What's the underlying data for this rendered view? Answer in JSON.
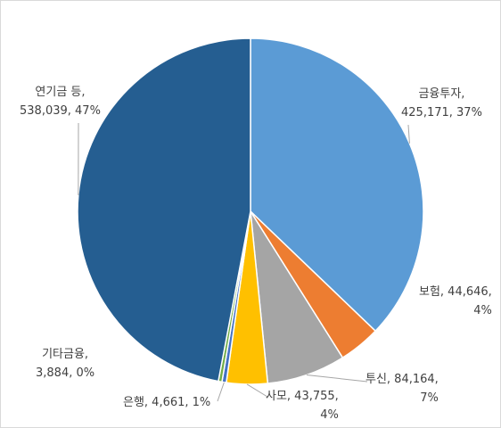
{
  "chart_data": {
    "type": "pie",
    "title": "",
    "categories": [
      "금융투자",
      "보험",
      "투신",
      "사모",
      "은행",
      "기타금융",
      "연기금 등"
    ],
    "values": [
      425171,
      44646,
      84164,
      43755,
      4661,
      3884,
      538039
    ],
    "percent_labels": [
      "37%",
      "4%",
      "7%",
      "4%",
      "1%",
      "0%",
      "47%"
    ],
    "colors": [
      "#5B9BD5",
      "#ED7D31",
      "#A5A5A5",
      "#FFC000",
      "#4472C4",
      "#70AD47",
      "#255E91"
    ],
    "legend": "none",
    "labels": [
      {
        "line1": "금융투자,",
        "line2": "425,171, 37%"
      },
      {
        "line1": "보험, 44,646,",
        "line2": "4%"
      },
      {
        "line1": "투신, 84,164,",
        "line2": "7%"
      },
      {
        "line1": "사모, 43,755,",
        "line2": "4%"
      },
      {
        "line1": "은행, 4,661, 1%",
        "line2": ""
      },
      {
        "line1": "기타금융,",
        "line2": "3,884, 0%"
      },
      {
        "line1": "연기금 등,",
        "line2": "538,039, 47%"
      }
    ]
  }
}
